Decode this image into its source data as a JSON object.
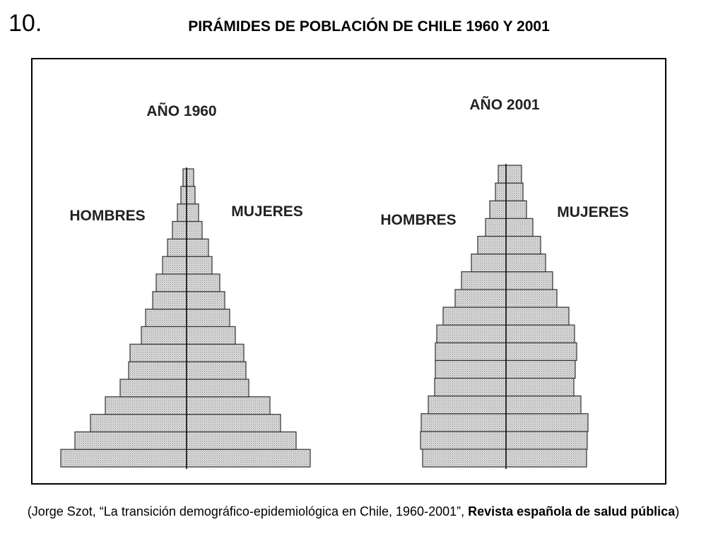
{
  "question_number": "10.",
  "title": "PIRÁMIDES DE POBLACIÓN DE CHILE 1960 Y 2001",
  "caption": {
    "prefix": "(Jorge Szot, “La transición demográfico-epidemiológica en Chile, 1960-2001”, ",
    "journal": "Revista española de salud pública",
    "suffix": ")"
  },
  "colors": {
    "bar_fill": "#d4d4d4",
    "bar_stroke": "#333333",
    "axis": "#111111"
  },
  "chart_data": [
    {
      "type": "bar",
      "title": "AÑO 1960",
      "left_label": "HOMBRES",
      "right_label": "MUJERES",
      "note": "relative bar lengths, bottom (youngest) to top (oldest)",
      "male": [
        178,
        158,
        136,
        115,
        94,
        82,
        80,
        64,
        58,
        48,
        43,
        34,
        27,
        20,
        13,
        8,
        5
      ],
      "female": [
        175,
        155,
        133,
        118,
        88,
        84,
        81,
        69,
        61,
        54,
        47,
        36,
        31,
        22,
        17,
        12,
        10
      ]
    },
    {
      "type": "bar",
      "title": "AÑO 2001",
      "left_label": "HOMBRES",
      "right_label": "MUJERES",
      "note": "relative bar lengths, bottom (youngest) to top (oldest)",
      "male": [
        118,
        121,
        120,
        110,
        101,
        100,
        100,
        98,
        89,
        72,
        63,
        49,
        40,
        29,
        23,
        15,
        11
      ],
      "female": [
        114,
        115,
        116,
        106,
        96,
        98,
        100,
        97,
        89,
        72,
        66,
        56,
        49,
        38,
        29,
        24,
        22
      ]
    }
  ]
}
